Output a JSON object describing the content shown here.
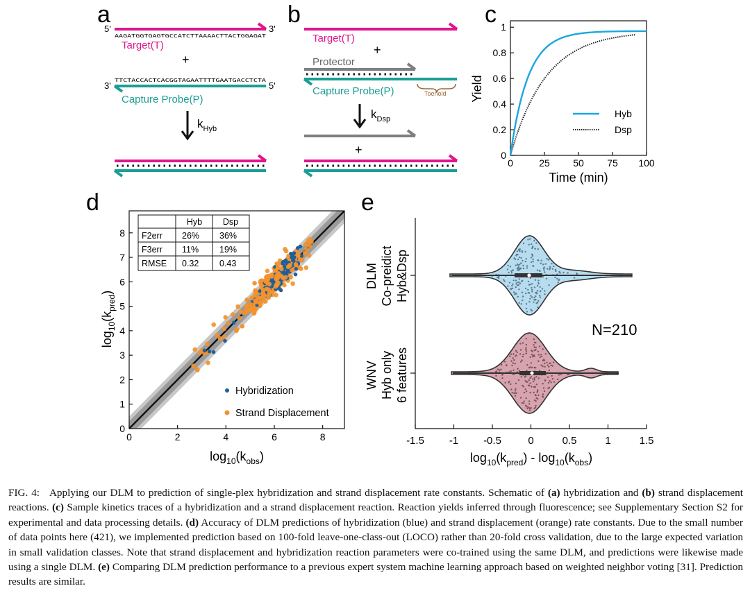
{
  "colors": {
    "target": "#e0158c",
    "probe": "#1b9e94",
    "protector": "#7f7f7f",
    "hyb": "#1aa6e0",
    "dsp": "#222222",
    "hyb_pt": "#1f5f99",
    "dsp_pt": "#f2922f",
    "violin_top": "#b7dcef",
    "violin_bot": "#d6a3ae"
  },
  "panels": {
    "a": {
      "letter": "a",
      "five_prime_top": "5'",
      "three_prime_top": "3'",
      "target_seq": "AAGATGGTGAGTGCCATCTTAAAACTTACTGGAGAT",
      "target_label": "Target(T)",
      "plus": "+",
      "three_prime_bot": "3'",
      "five_prime_bot": "5'",
      "probe_seq": "TTCTACCACTCACGGTAGAATTTTGAATGACCTCTA",
      "probe_label": "Capture Probe(P)",
      "rate_k": "k",
      "rate_sub": "Hyb"
    },
    "b": {
      "letter": "b",
      "target_label": "Target(T)",
      "plus": "+",
      "protector_label": "Protector",
      "probe_label": "Capture Probe(P)",
      "toehold_label": "Toehold",
      "rate_k": "k",
      "rate_sub": "Dsp",
      "plus2": "+"
    },
    "c": {
      "letter": "c",
      "ylabel": "Yield",
      "xlabel": "Time (min)",
      "xticks": [
        "0",
        "25",
        "50",
        "75",
        "100"
      ],
      "yticks": [
        "0",
        "0.2",
        "0.4",
        "0.6",
        "0.8",
        "1"
      ],
      "legend": [
        "Hyb",
        "Dsp"
      ]
    },
    "d": {
      "letter": "d",
      "xlabel_main": "log",
      "xlabel_sub1": "10",
      "xlabel_paren": "(k",
      "xlabel_sub2": "obs",
      "xlabel_close": ")",
      "ylabel_main": "log",
      "ylabel_sub1": "10",
      "ylabel_paren": "(k",
      "ylabel_sub2": "pred",
      "ylabel_close": ")",
      "xticks": [
        "0",
        "2",
        "4",
        "6",
        "8"
      ],
      "yticks": [
        "0",
        "1",
        "2",
        "3",
        "4",
        "5",
        "6",
        "7",
        "8"
      ],
      "table": {
        "header": [
          "",
          "Hyb",
          "Dsp"
        ],
        "rows": [
          [
            "F2err",
            "26%",
            "36%"
          ],
          [
            "F3err",
            "11%",
            "19%"
          ],
          [
            "RMSE",
            "0.32",
            "0.43"
          ]
        ]
      },
      "legend": [
        "Hybridization",
        "Strand Displacement"
      ]
    },
    "e": {
      "letter": "e",
      "top_label": [
        "DLM",
        "Co-preidict",
        "Hyb&Dsp"
      ],
      "bottom_label": [
        "WNV",
        "Hyb only",
        "6 features"
      ],
      "n_label": "N=210",
      "xticks": [
        "-1.5",
        "-1",
        "-0.5",
        "0",
        "0.5",
        "1",
        "1.5"
      ],
      "xlabel": [
        "log",
        "10",
        "(k",
        "pred",
        ") - log",
        "10",
        "(k",
        "obs",
        ")"
      ]
    }
  },
  "caption": {
    "fig": "FIG. 4:",
    "t1": "Applying our DLM to prediction of single-plex hybridization and strand displacement rate constants. Schematic of ",
    "a": "(a)",
    "t2": " hybridization and ",
    "b": "(b)",
    "t3": " strand displacement reactions. ",
    "c": "(c)",
    "t4": " Sample kinetics traces of a hybridization and a strand displacement reaction. Reaction yields inferred through fluorescence; see Supplementary Section S2 for experimental and data processing details. ",
    "d": "(d)",
    "t5": " Accuracy of DLM predictions of hybridization (blue) and strand displacement (orange) rate constants. Due to the small number of data points here (421), we implemented prediction based on 100-fold leave-one-class-out (LOCO) rather than 20-fold cross validation, due to the large expected variation in small validation classes. Note that strand displacement and hybridization reaction parameters were co-trained using the same DLM, and predictions were likewise made using a single DLM. ",
    "e": "(e)",
    "t6": " Comparing DLM prediction performance to a previous expert system machine learning approach based on weighted neighbor voting [31]. Prediction results are similar."
  }
}
